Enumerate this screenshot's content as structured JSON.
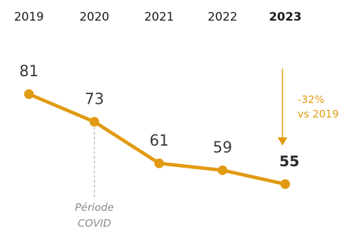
{
  "chart_data": {
    "type": "line",
    "categories": [
      "2019",
      "2020",
      "2021",
      "2022",
      "2023"
    ],
    "highlight_category": "2023",
    "series": [
      {
        "values": [
          81,
          73,
          61,
          59,
          55
        ]
      }
    ],
    "data_labels": [
      "81",
      "73",
      "61",
      "59",
      "55"
    ],
    "annotations": {
      "covid": {
        "category": "2020",
        "line1": "Période",
        "line2": "COVID"
      },
      "change": {
        "line1": "-32%",
        "line2": "vs 2019"
      }
    },
    "colors": {
      "line": "#E19A12",
      "text": "#1a1a1a",
      "note": "#8a8a8a"
    },
    "grid": false,
    "legend": "none"
  }
}
